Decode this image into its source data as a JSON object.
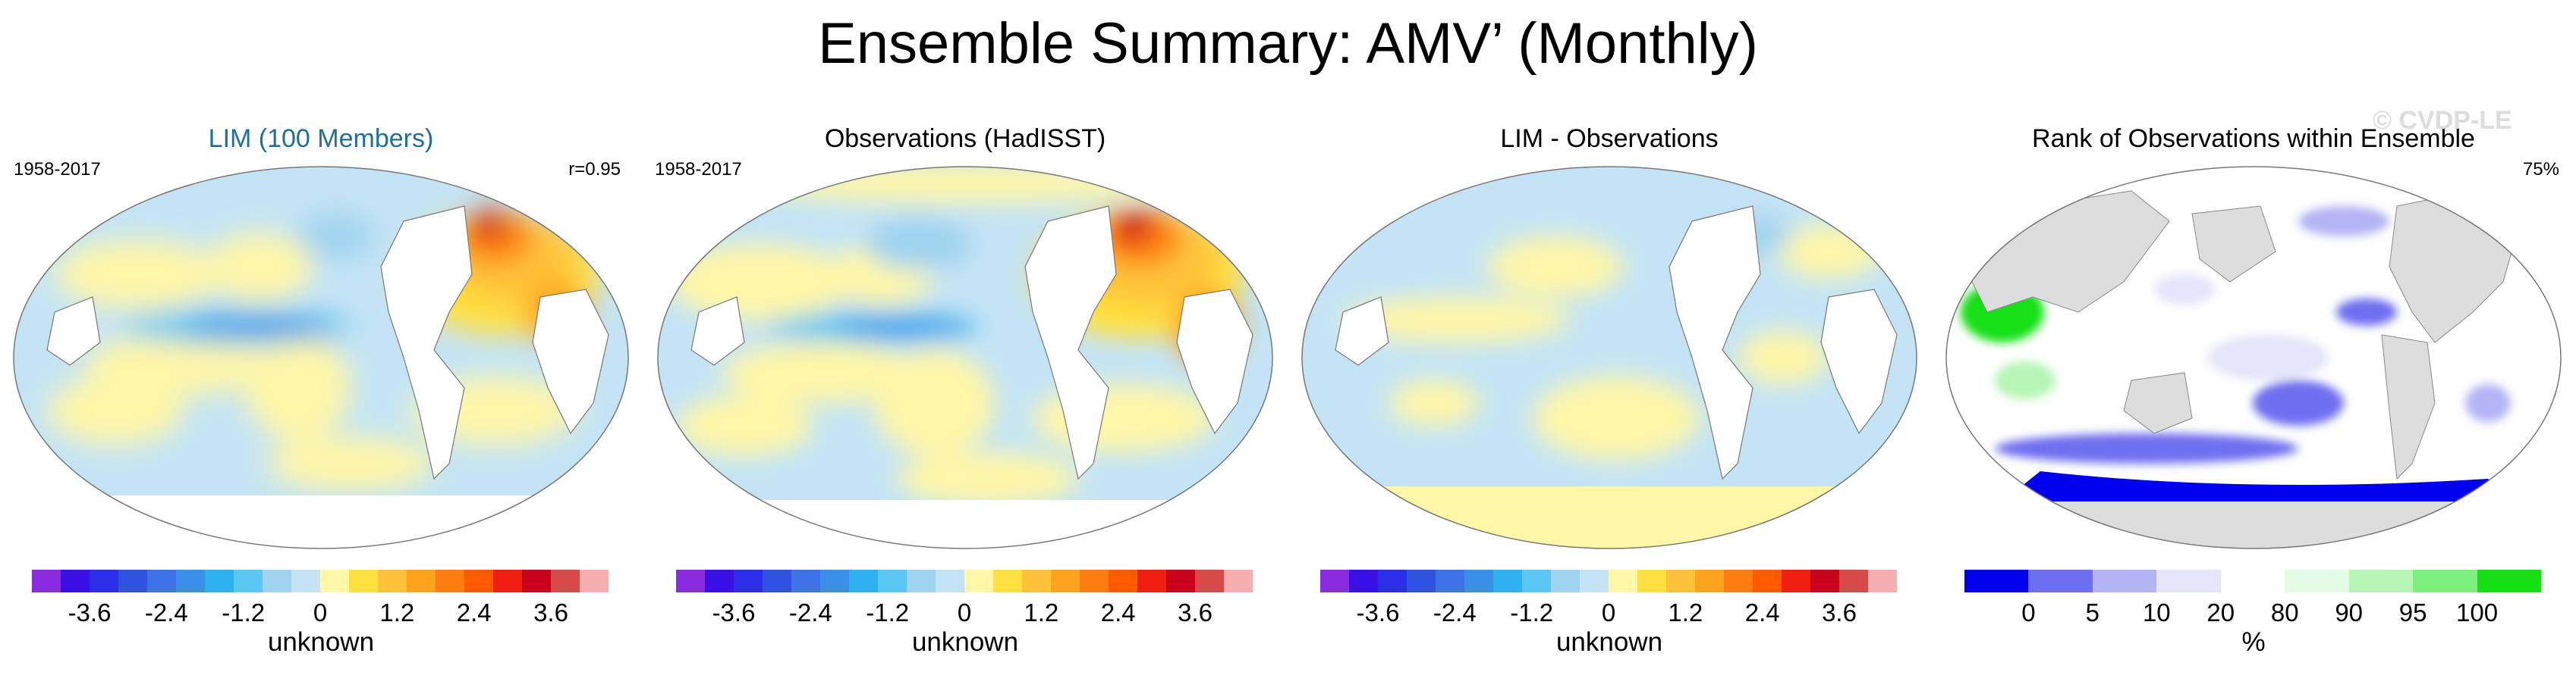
{
  "figure_title": "Ensemble Summary: AMV’ (Monthly)",
  "watermark": "© CVDP-LE",
  "panels": [
    {
      "title": "LIM (100 Members)",
      "period": "1958-2017",
      "stat": "r=0.95",
      "unit": "unknown",
      "kind": "lim"
    },
    {
      "title": "Observations (HadISST)",
      "period": "1958-2017",
      "stat": "",
      "unit": "unknown",
      "kind": "obs"
    },
    {
      "title": "LIM - Observations",
      "period": "",
      "stat": "",
      "unit": "unknown",
      "kind": "diff"
    },
    {
      "title": "Rank of Observations within Ensemble",
      "period": "",
      "stat": "75%",
      "unit": "%",
      "kind": "rank"
    }
  ],
  "anomaly_colorbar": {
    "colors": [
      "#8a2be2",
      "#3b10e6",
      "#2a2ee8",
      "#2f52e3",
      "#3d72e8",
      "#3a8fe8",
      "#2fb0f0",
      "#5ac6f2",
      "#9fd3ef",
      "#c4e4f5",
      "#fff7a8",
      "#ffe040",
      "#ffc23a",
      "#ffa21e",
      "#ff7d10",
      "#ff5a00",
      "#f02010",
      "#c8001c",
      "#d84a4a",
      "#f7aeae"
    ],
    "tick_labels": [
      "-3.6",
      "-2.4",
      "-1.2",
      "0",
      "1.2",
      "2.4",
      "3.6"
    ]
  },
  "rank_colorbar": {
    "colors": [
      "#0000ee",
      "#6e6ef0",
      "#b4b4f5",
      "#e4e4fb",
      "#ffffff",
      "#e4fbe4",
      "#b6f5b6",
      "#7cf07c",
      "#14e014"
    ],
    "tick_labels": [
      "0",
      "5",
      "10",
      "20",
      "80",
      "90",
      "95",
      "100"
    ]
  }
}
